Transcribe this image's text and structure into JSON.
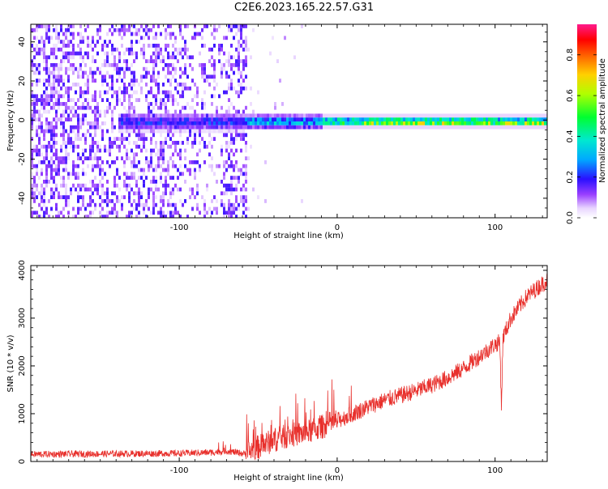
{
  "figure": {
    "title": "C2E6.2023.165.22.57.G31"
  },
  "chart_data": [
    {
      "type": "heatmap",
      "xlabel": "Height of straight line (km)",
      "ylabel": "Frequency (Hz)",
      "xlim": [
        -194,
        133
      ],
      "ylim": [
        -50,
        49
      ],
      "xticks": [
        -100,
        0,
        100
      ],
      "yticks": [
        -40,
        -20,
        0,
        20,
        40
      ],
      "grid": false,
      "colorbar": {
        "label": "Normalized spectral amplitude",
        "range": [
          0,
          0.95
        ],
        "ticks": [
          0.0,
          0.2,
          0.4,
          0.6,
          0.8
        ],
        "colors": [
          "#ffffff",
          "#d9b3ff",
          "#8a2be2",
          "#3a00ff",
          "#00c8ff",
          "#00ff40",
          "#c8ff00",
          "#ffd200",
          "#ff6a00",
          "#ff0000",
          "#ff1493"
        ]
      },
      "description_regions": {
        "noise_band_x": [
          -194,
          -58
        ],
        "signal_line_frequency": 0,
        "signal_x": [
          -140,
          133
        ]
      }
    },
    {
      "type": "line",
      "xlabel": "Height of straight line (km)",
      "ylabel": "SNR (10 * v/v)",
      "xlim": [
        -194,
        133
      ],
      "ylim": [
        0,
        4100
      ],
      "xticks": [
        -100,
        0,
        100
      ],
      "yticks": [
        0,
        1000,
        2000,
        3000,
        4000
      ],
      "grid": false,
      "series": [
        {
          "color": "#e8302c",
          "trend": {
            "x": [
              -194,
              -150,
              -100,
              -80,
              -70,
              -58,
              -50,
              -40,
              -30,
              -20,
              -10,
              0,
              10,
              20,
              30,
              40,
              50,
              60,
              70,
              80,
              90,
              100,
              103,
              104,
              105,
              110,
              120,
              133
            ],
            "y": [
              150,
              160,
              170,
              190,
              220,
              160,
              300,
              450,
              550,
              600,
              720,
              850,
              1000,
              1150,
              1280,
              1380,
              1480,
              1600,
              1750,
              1950,
              2200,
              2450,
              2500,
              1150,
              2600,
              3000,
              3450,
              3800
            ]
          }
        }
      ]
    }
  ]
}
